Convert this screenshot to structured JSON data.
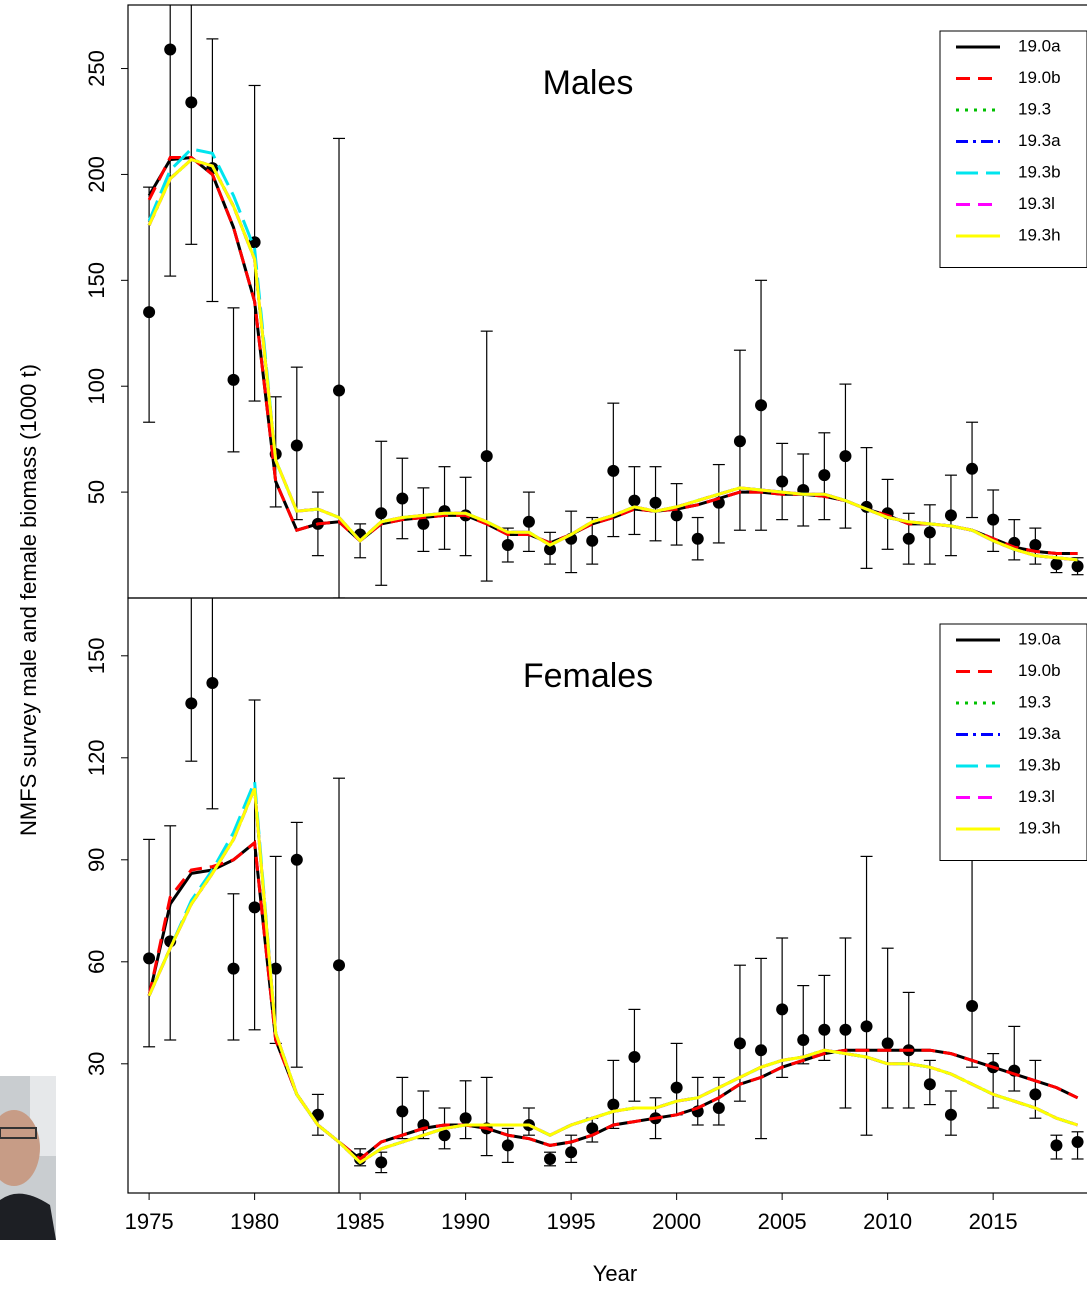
{
  "chart_data": [
    {
      "type": "line",
      "title": "Males",
      "ylabel": "NMFS survey male and female biomass (1000 t)",
      "x": [
        1975,
        1976,
        1977,
        1978,
        1979,
        1980,
        1981,
        1982,
        1983,
        1984,
        1985,
        1986,
        1987,
        1988,
        1989,
        1990,
        1991,
        1992,
        1993,
        1994,
        1995,
        1996,
        1997,
        1998,
        1999,
        2000,
        2001,
        2002,
        2003,
        2004,
        2005,
        2006,
        2007,
        2008,
        2009,
        2010,
        2011,
        2012,
        2013,
        2014,
        2015,
        2016,
        2017,
        2018,
        2019
      ],
      "xlim": [
        1974,
        2019.4
      ],
      "ylim": [
        0,
        280
      ],
      "yticks": [
        50,
        100,
        150,
        200,
        250
      ],
      "legend": "top-right",
      "survey": {
        "color": "#000000",
        "values": [
          135,
          259,
          234,
          203,
          103,
          168,
          68,
          72,
          35,
          98,
          30,
          40,
          47,
          35,
          41,
          39,
          67,
          25,
          36,
          23,
          28,
          27,
          60,
          46,
          45,
          39,
          28,
          45,
          74,
          91,
          55,
          51,
          58,
          67,
          43,
          40,
          28,
          31,
          39,
          61,
          37,
          26,
          25,
          16,
          15
        ],
        "lower": [
          83,
          152,
          167,
          140,
          69,
          93,
          43,
          37,
          20,
          0,
          19,
          6,
          28,
          22,
          23,
          20,
          8,
          17,
          22,
          16,
          12,
          16,
          29,
          30,
          27,
          25,
          18,
          26,
          32,
          32,
          37,
          34,
          37,
          33,
          14,
          23,
          16,
          16,
          20,
          38,
          22,
          18,
          16,
          12,
          11
        ],
        "upper": [
          194,
          330,
          330,
          264,
          137,
          242,
          95,
          109,
          50,
          217,
          35,
          74,
          66,
          52,
          62,
          57,
          126,
          33,
          50,
          31,
          41,
          38,
          92,
          62,
          62,
          54,
          38,
          63,
          117,
          150,
          73,
          68,
          78,
          101,
          71,
          56,
          40,
          44,
          58,
          83,
          51,
          37,
          33,
          21,
          19
        ]
      },
      "series": [
        {
          "name": "19.0a",
          "color": "#000000",
          "dash": "solid",
          "values": [
            190,
            207,
            208,
            200,
            175,
            140,
            55,
            32,
            35,
            36,
            27,
            35,
            37,
            38,
            39,
            39,
            35,
            30,
            30,
            26,
            30,
            35,
            38,
            42,
            41,
            42,
            44,
            47,
            50,
            50,
            49,
            49,
            48,
            46,
            42,
            39,
            35,
            35,
            34,
            32,
            28,
            24,
            22,
            21,
            21
          ]
        },
        {
          "name": "19.0b",
          "color": "#ff0000",
          "dash": "dashed",
          "values": [
            188,
            208,
            208,
            200,
            175,
            140,
            55,
            32,
            35,
            36,
            27,
            35,
            37,
            38,
            39,
            39,
            35,
            30,
            30,
            26,
            30,
            35,
            38,
            42,
            41,
            42,
            44,
            47,
            50,
            50,
            49,
            49,
            48,
            46,
            42,
            39,
            35,
            35,
            34,
            32,
            28,
            24,
            22,
            21,
            21
          ]
        },
        {
          "name": "19.3",
          "color": "#00c000",
          "dash": "dotted",
          "values": [
            176,
            198,
            207,
            204,
            185,
            160,
            65,
            41,
            42,
            38,
            27,
            36,
            38,
            39,
            40,
            40,
            36,
            31,
            31,
            25,
            30,
            36,
            39,
            43,
            41,
            43,
            46,
            49,
            52,
            51,
            50,
            49,
            49,
            46,
            42,
            38,
            36,
            35,
            34,
            32,
            27,
            23,
            20,
            19,
            18
          ]
        },
        {
          "name": "19.3a",
          "color": "#0000ff",
          "dash": "dashdot",
          "values": [
            176,
            198,
            207,
            204,
            185,
            160,
            65,
            41,
            42,
            38,
            27,
            36,
            38,
            39,
            40,
            40,
            36,
            31,
            31,
            25,
            30,
            36,
            39,
            43,
            41,
            43,
            46,
            49,
            52,
            51,
            50,
            49,
            49,
            46,
            42,
            38,
            36,
            35,
            34,
            32,
            27,
            23,
            20,
            19,
            18
          ]
        },
        {
          "name": "19.3b",
          "color": "#00e5ee",
          "dash": "longdash",
          "values": [
            178,
            202,
            212,
            210,
            190,
            165,
            65,
            41,
            42,
            38,
            27,
            36,
            38,
            39,
            40,
            40,
            36,
            31,
            31,
            25,
            30,
            36,
            39,
            43,
            41,
            43,
            46,
            49,
            52,
            51,
            50,
            49,
            49,
            46,
            42,
            38,
            36,
            35,
            34,
            32,
            27,
            23,
            20,
            19,
            18
          ]
        },
        {
          "name": "19.3l",
          "color": "#ff00ff",
          "dash": "dashed",
          "values": [
            176,
            198,
            207,
            204,
            185,
            160,
            65,
            41,
            42,
            38,
            27,
            36,
            38,
            39,
            40,
            40,
            36,
            31,
            31,
            25,
            30,
            36,
            39,
            43,
            41,
            43,
            46,
            49,
            52,
            51,
            50,
            49,
            49,
            46,
            42,
            38,
            36,
            35,
            34,
            32,
            27,
            23,
            20,
            19,
            18
          ]
        },
        {
          "name": "19.3h",
          "color": "#ffff00",
          "dash": "solid",
          "values": [
            176,
            198,
            207,
            204,
            185,
            160,
            65,
            41,
            42,
            38,
            27,
            36,
            38,
            39,
            40,
            40,
            36,
            31,
            31,
            25,
            30,
            36,
            39,
            43,
            41,
            43,
            46,
            49,
            52,
            51,
            50,
            49,
            49,
            46,
            42,
            38,
            36,
            35,
            34,
            32,
            27,
            23,
            20,
            19,
            18
          ]
        }
      ]
    },
    {
      "type": "line",
      "title": "Females",
      "xlabel": "Year",
      "x": [
        1975,
        1976,
        1977,
        1978,
        1979,
        1980,
        1981,
        1982,
        1983,
        1984,
        1985,
        1986,
        1987,
        1988,
        1989,
        1990,
        1991,
        1992,
        1993,
        1994,
        1995,
        1996,
        1997,
        1998,
        1999,
        2000,
        2001,
        2002,
        2003,
        2004,
        2005,
        2006,
        2007,
        2008,
        2009,
        2010,
        2011,
        2012,
        2013,
        2014,
        2015,
        2016,
        2017,
        2018,
        2019
      ],
      "xlim": [
        1974,
        2019.4
      ],
      "xticks": [
        1975,
        1980,
        1985,
        1990,
        1995,
        2000,
        2005,
        2010,
        2015
      ],
      "ylim": [
        -8,
        167
      ],
      "yticks": [
        30,
        60,
        90,
        120,
        150
      ],
      "legend": "top-right",
      "survey": {
        "color": "#000000",
        "values": [
          61,
          66,
          136,
          142,
          58,
          76,
          58,
          90,
          15,
          59,
          2,
          1,
          16,
          12,
          9,
          14,
          11,
          6,
          12,
          2,
          4,
          11,
          18,
          32,
          14,
          23,
          16,
          17,
          36,
          34,
          46,
          37,
          40,
          40,
          41,
          36,
          34,
          24,
          15,
          47,
          29,
          28,
          21,
          6,
          7
        ],
        "lower": [
          35,
          37,
          119,
          105,
          37,
          40,
          36,
          29,
          9,
          -10,
          0,
          -2,
          8,
          8,
          5,
          8,
          3,
          1,
          9,
          0,
          1,
          7,
          11,
          19,
          8,
          15,
          12,
          12,
          19,
          8,
          26,
          30,
          31,
          17,
          9,
          17,
          17,
          18,
          9,
          29,
          17,
          22,
          14,
          2,
          2
        ],
        "upper": [
          96,
          100,
          175,
          175,
          80,
          137,
          91,
          101,
          21,
          114,
          5,
          4,
          26,
          22,
          17,
          25,
          26,
          11,
          17,
          4,
          9,
          14,
          31,
          46,
          20,
          36,
          26,
          26,
          59,
          61,
          67,
          53,
          56,
          67,
          91,
          64,
          51,
          31,
          22,
          92,
          33,
          41,
          31,
          9,
          10
        ]
      },
      "series": [
        {
          "name": "19.0a",
          "color": "#000000",
          "dash": "solid",
          "values": [
            50,
            77,
            86,
            87,
            90,
            95,
            37,
            21,
            12,
            7,
            2,
            7,
            9,
            11,
            12,
            12,
            11,
            9,
            8,
            6,
            7,
            9,
            12,
            13,
            14,
            15,
            17,
            20,
            24,
            26,
            29,
            31,
            33,
            34,
            34,
            34,
            34,
            34,
            33,
            31,
            29,
            27,
            25,
            23,
            20
          ]
        },
        {
          "name": "19.0b",
          "color": "#ff0000",
          "dash": "dashed",
          "values": [
            50,
            79,
            87,
            88,
            90,
            95,
            37,
            21,
            12,
            7,
            2,
            7,
            9,
            11,
            12,
            12,
            11,
            9,
            8,
            6,
            7,
            9,
            12,
            13,
            14,
            15,
            17,
            20,
            24,
            26,
            29,
            31,
            33,
            34,
            34,
            34,
            34,
            34,
            33,
            31,
            29,
            27,
            25,
            23,
            20
          ]
        },
        {
          "name": "19.3",
          "color": "#00c000",
          "dash": "dotted",
          "values": [
            50,
            64,
            77,
            86,
            96,
            111,
            39,
            21,
            12,
            7,
            1,
            5,
            7,
            9,
            11,
            12,
            12,
            12,
            12,
            9,
            12,
            14,
            16,
            17,
            17,
            19,
            20,
            23,
            26,
            29,
            31,
            32,
            34,
            33,
            32,
            30,
            30,
            29,
            27,
            24,
            21,
            19,
            17,
            14,
            12
          ]
        },
        {
          "name": "19.3a",
          "color": "#0000ff",
          "dash": "dashdot",
          "values": [
            50,
            64,
            77,
            86,
            96,
            111,
            39,
            21,
            12,
            7,
            1,
            5,
            7,
            9,
            11,
            12,
            12,
            12,
            12,
            9,
            12,
            14,
            16,
            17,
            17,
            19,
            20,
            23,
            26,
            29,
            31,
            32,
            34,
            33,
            32,
            30,
            30,
            29,
            27,
            24,
            21,
            19,
            17,
            14,
            12
          ]
        },
        {
          "name": "19.3b",
          "color": "#00e5ee",
          "dash": "longdash",
          "values": [
            50,
            64,
            78,
            87,
            98,
            113,
            39,
            21,
            12,
            7,
            1,
            5,
            7,
            9,
            11,
            12,
            12,
            12,
            12,
            9,
            12,
            14,
            16,
            17,
            17,
            19,
            20,
            23,
            26,
            29,
            31,
            32,
            34,
            33,
            32,
            30,
            30,
            29,
            27,
            24,
            21,
            19,
            17,
            14,
            12
          ]
        },
        {
          "name": "19.3l",
          "color": "#ff00ff",
          "dash": "dashed",
          "values": [
            50,
            64,
            77,
            86,
            96,
            111,
            39,
            21,
            12,
            7,
            1,
            5,
            7,
            9,
            11,
            12,
            12,
            12,
            12,
            9,
            12,
            14,
            16,
            17,
            17,
            19,
            20,
            23,
            26,
            29,
            31,
            32,
            34,
            33,
            32,
            30,
            30,
            29,
            27,
            24,
            21,
            19,
            17,
            14,
            12
          ]
        },
        {
          "name": "19.3h",
          "color": "#ffff00",
          "dash": "solid",
          "values": [
            50,
            64,
            77,
            86,
            96,
            111,
            39,
            21,
            12,
            7,
            1,
            5,
            7,
            9,
            11,
            12,
            12,
            12,
            12,
            9,
            12,
            14,
            16,
            17,
            17,
            19,
            20,
            23,
            26,
            29,
            31,
            32,
            34,
            33,
            32,
            30,
            30,
            29,
            27,
            24,
            21,
            19,
            17,
            14,
            12
          ]
        }
      ]
    }
  ]
}
